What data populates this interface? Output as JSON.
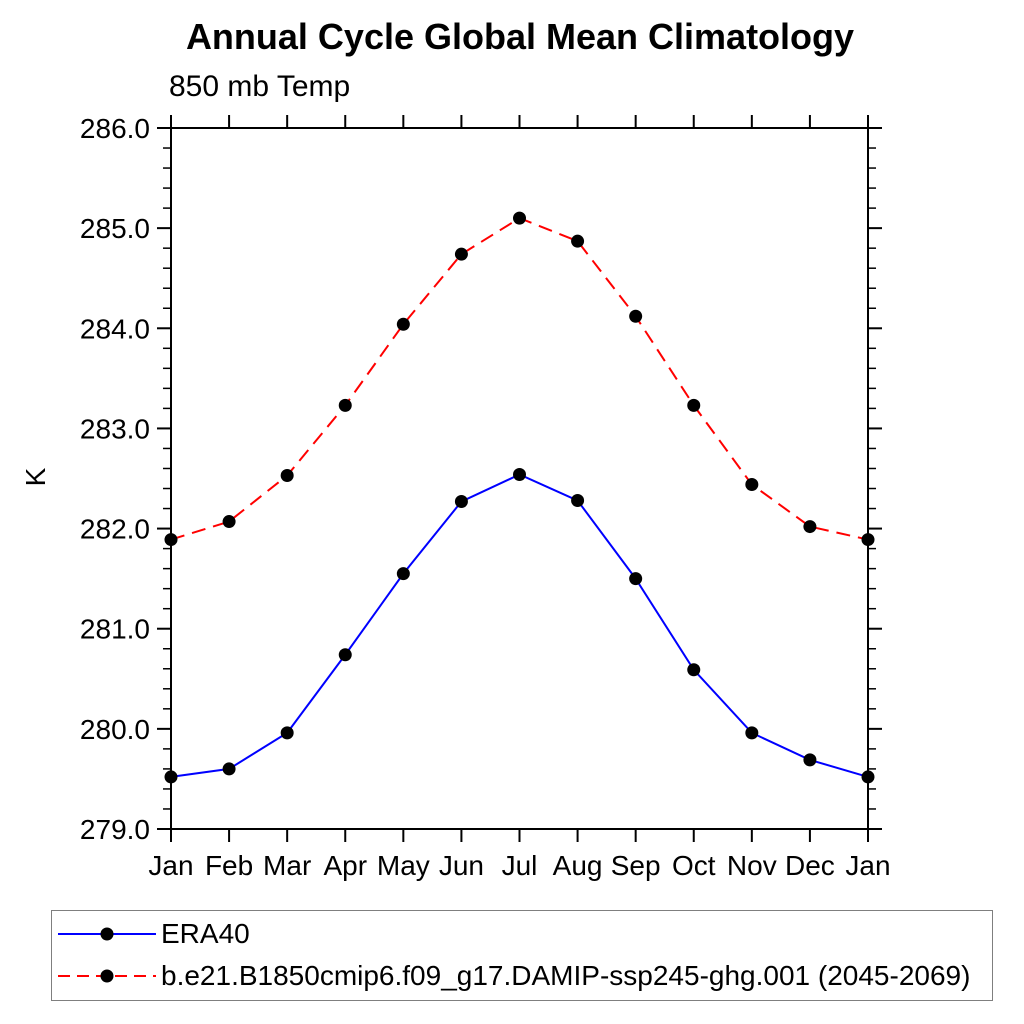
{
  "chart_data": {
    "type": "line",
    "title": "Annual Cycle Global Mean Climatology",
    "subtitle": "850 mb Temp",
    "ylabel": "K",
    "xlabel": "",
    "categories": [
      "Jan",
      "Feb",
      "Mar",
      "Apr",
      "May",
      "Jun",
      "Jul",
      "Aug",
      "Sep",
      "Oct",
      "Nov",
      "Dec",
      "Jan"
    ],
    "ylim": [
      279.0,
      286.0
    ],
    "y_major_tick_labels": [
      "279.0",
      "280.0",
      "281.0",
      "282.0",
      "283.0",
      "284.0",
      "285.0",
      "286.0"
    ],
    "y_minor_step": 0.2,
    "grid": false,
    "legend_position": "bottom-left-box",
    "series": [
      {
        "name": "ERA40",
        "color": "#0000ff",
        "style": "solid",
        "marker": "filled-circle",
        "marker_color": "#000000",
        "values": [
          279.52,
          279.6,
          279.96,
          280.74,
          281.55,
          282.27,
          282.54,
          282.28,
          281.5,
          280.59,
          279.96,
          279.69,
          279.52
        ]
      },
      {
        "name": "b.e21.B1850cmip6.f09_g17.DAMIP-ssp245-ghg.001 (2045-2069)",
        "color": "#ff0000",
        "style": "dashed",
        "marker": "filled-circle",
        "marker_color": "#000000",
        "values": [
          281.89,
          282.07,
          282.53,
          283.23,
          284.04,
          284.74,
          285.1,
          284.87,
          284.12,
          283.23,
          282.44,
          282.02,
          281.89
        ]
      }
    ],
    "axis_color": "#000000"
  }
}
